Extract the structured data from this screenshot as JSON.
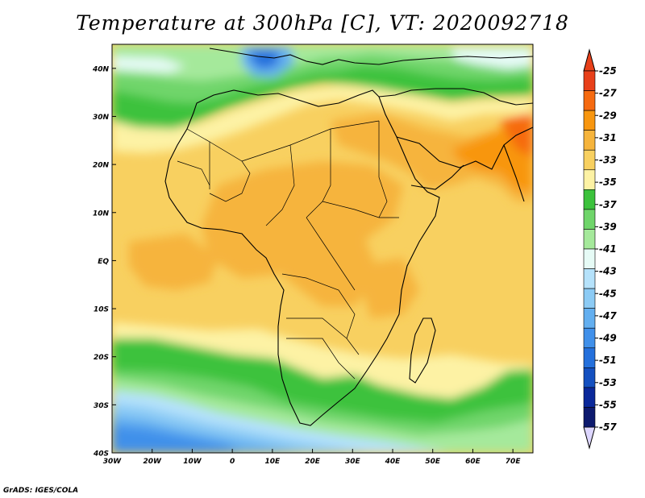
{
  "title": "Temperature at 300hPa [C], VT: 2020092718",
  "footer": "GrADS: IGES/COLA",
  "map": {
    "lon_range": [
      -30,
      75
    ],
    "lat_range": [
      -40,
      45
    ],
    "lat_labels": [
      "40N",
      "30N",
      "20N",
      "10N",
      "EQ",
      "10S",
      "20S",
      "30S",
      "40S"
    ],
    "lat_values": [
      40,
      30,
      20,
      10,
      0,
      -10,
      -20,
      -30,
      -40
    ],
    "lon_labels": [
      "30W",
      "20W",
      "10W",
      "0",
      "10E",
      "20E",
      "30E",
      "40E",
      "50E",
      "60E",
      "70E"
    ],
    "lon_values": [
      -30,
      -20,
      -10,
      0,
      10,
      20,
      30,
      40,
      50,
      60,
      70
    ]
  },
  "colorbar": {
    "labels": [
      "-25",
      "-27",
      "-29",
      "-31",
      "-33",
      "-35",
      "-37",
      "-39",
      "-41",
      "-43",
      "-45",
      "-47",
      "-49",
      "-51",
      "-53",
      "-55",
      "-57"
    ],
    "colors": [
      "#e8401a",
      "#f66a10",
      "#f8960f",
      "#f6b43c",
      "#f8d060",
      "#fdf2a4",
      "#3cc23c",
      "#6fd56a",
      "#a5e99b",
      "#e6fbf6",
      "#b5e2fb",
      "#8ccbf5",
      "#63aff0",
      "#4090ea",
      "#2470dc",
      "#1450c0",
      "#0a289a",
      "#0d1a6e"
    ],
    "top_arrow_color": "#e8401a",
    "bottom_arrow_color": "#ddd6ff"
  }
}
